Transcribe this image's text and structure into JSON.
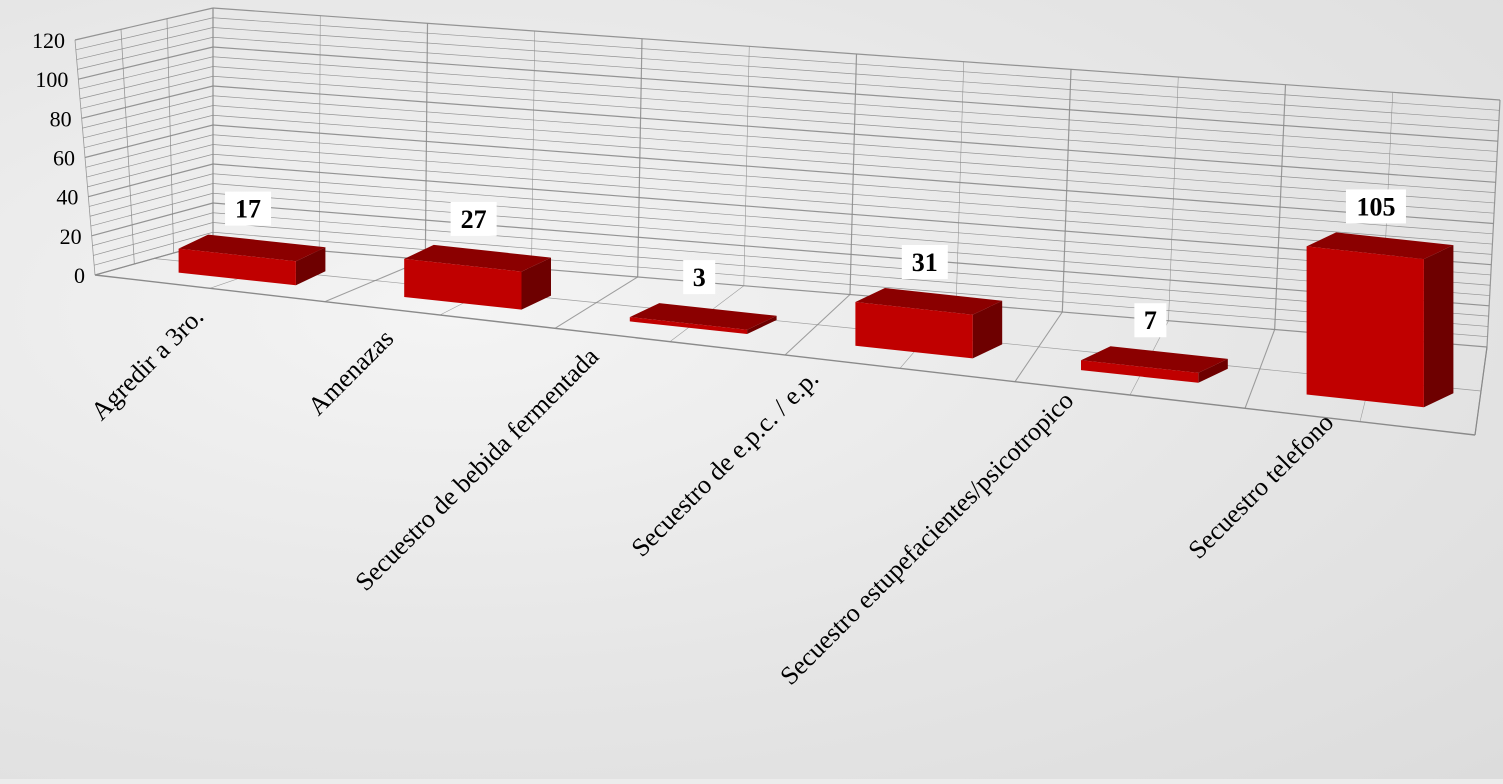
{
  "chart_data": {
    "type": "bar",
    "style": "3d-column",
    "categories": [
      "Agredir a 3ro.",
      "Amenazas",
      "Secuestro de bebida fermentada",
      "Secuestro de e.p.c. / e.p.",
      "Secuestro estupefacientes/psicotropico",
      "Secuestro telefono"
    ],
    "values": [
      17,
      27,
      3,
      31,
      7,
      105
    ],
    "ylim": [
      0,
      120
    ],
    "ytick_step": 20,
    "ytick_labels": [
      "0",
      "20",
      "40",
      "60",
      "80",
      "100",
      "120"
    ],
    "data_labels": [
      "17",
      "27",
      "3",
      "31",
      "7",
      "105"
    ],
    "grid": true,
    "legend": "none",
    "title": "",
    "xlabel": "",
    "ylabel": "",
    "colors": {
      "bar_front": "#c00000",
      "bar_top": "#8b0000",
      "bar_side": "#6e0000",
      "grid": "#8a8a8a",
      "label_bg": "#ffffff"
    }
  }
}
